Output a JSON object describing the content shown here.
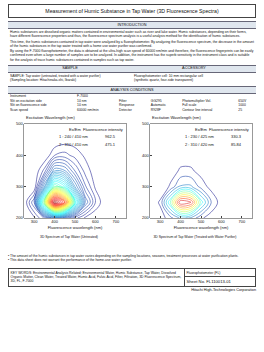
{
  "title": "Measurement of Humic Substance in Tap Water (3D Fluorescence Spectra)",
  "introduction": {
    "heading": "INTRODUCTION",
    "paragraphs": [
      "Humic substances are dissolved organic matters contained in environmental water such as river and lake water. Humic substances, depending on their forms, have different fluorescence properties and thus, the fluorescence spectrum analysis is a useful analysis method for the identification of humic substances.",
      "This time, the humic substances contained in tap water were analyzed by a fluorophotometer. By analyzing the fluorescence spectrum, the decrease in the amount of the humic substances in the tap water treated with a home use water purifier was confirmed.",
      "By using the F-7000 fluorophotometer, the data is obtained at the ultra-high scan speed of 60000 nm/min and therefore, the fluorescence fingerprints can be easily confirmed even when a large number of samples are to be analyzed. In addition, the instrument has the superb sensitivity in the instrument class and is suitable for the analysis of trace humic substances contained in samples such as tap water."
    ]
  },
  "sample": {
    "heading": "SAMPLE",
    "lines": [
      "SAMPLE: Tap water (untreated, treated with a water purifier)",
      "(Sampling location: Hitachinaka-shi, Ibaraki)"
    ]
  },
  "accessory": {
    "heading": "ACCESSORY",
    "lines": [
      "Fluorophotometer cell: 10 mm rectangular cell",
      "(synthetic quartz, four-side transparent)"
    ]
  },
  "analysis_conditions": {
    "heading": "ANALYSIS CONDITIONS",
    "instrument": {
      "label": "Instrument",
      "value": "F-7000"
    },
    "rows": [
      [
        {
          "label": "Slit on excitation side",
          "value": "10 nm"
        },
        {
          "label": "Filter",
          "value": "GG295"
        },
        {
          "label": "Photomultiplier Vol.",
          "value": "650V"
        }
      ],
      [
        {
          "label": "Slit on fluorescence side",
          "value": "10 nm"
        },
        {
          "label": "Response",
          "value": "Automatic"
        },
        {
          "label": "Full scale",
          "value": "1000"
        }
      ],
      [
        {
          "label": "Scan speed",
          "value": "60000 nm/min"
        },
        {
          "label": "Detector",
          "value": "R928F"
        },
        {
          "label": "Contour line interval",
          "value": 25
        }
      ]
    ]
  },
  "chart_data": [
    {
      "type": "contour",
      "title": "3D Spectrum of Tap Water (Untreated)",
      "x_label": "Fluorescence wavelength (nm)",
      "y_label": "Excitation Wavelength (nm)",
      "x": [
        250,
        300,
        350,
        400,
        450,
        500,
        550,
        600,
        650,
        700,
        750
      ],
      "y": [
        200,
        250,
        300,
        350,
        400,
        450,
        500
      ],
      "z": [
        [
          0,
          20,
          80,
          150,
          120,
          60,
          20,
          0,
          0,
          0,
          0
        ],
        [
          0,
          100,
          500,
          950,
          800,
          400,
          150,
          50,
          0,
          0,
          0
        ],
        [
          0,
          0,
          200,
          460,
          380,
          200,
          80,
          20,
          0,
          0,
          0
        ],
        [
          0,
          0,
          60,
          200,
          180,
          100,
          40,
          10,
          0,
          0,
          0
        ],
        [
          0,
          0,
          0,
          50,
          60,
          40,
          20,
          0,
          0,
          0,
          0
        ],
        [
          0,
          0,
          0,
          0,
          10,
          10,
          0,
          0,
          0,
          0,
          0
        ],
        [
          0,
          0,
          0,
          0,
          0,
          0,
          0,
          0,
          0,
          0,
          0
        ]
      ],
      "xlim": [
        250,
        750
      ],
      "xticks": [
        300,
        400,
        500,
        600,
        700
      ],
      "ylim": [
        200,
        500
      ],
      "yticks": [
        200,
        300,
        400,
        500
      ],
      "peaks": {
        "header": [
          "Ex/Em",
          "Fluorescence intensity"
        ],
        "rows": [
          [
            "1 :",
            "240 / 410 nm",
            962.5
          ],
          [
            "2 :",
            "310 / 410 nm",
            475.1
          ]
        ]
      }
    },
    {
      "type": "contour",
      "title": "3D Spectrum of Tap Water (Treated with Water Purifier)",
      "x_label": "Fluorescence wavelength (nm)",
      "y_label": "Excitation Wavelength (nm)",
      "x": [
        250,
        300,
        350,
        400,
        450,
        500,
        550,
        600,
        650,
        700,
        750
      ],
      "y": [
        200,
        250,
        300,
        350,
        400,
        450,
        500
      ],
      "z": [
        [
          0,
          10,
          40,
          80,
          70,
          30,
          10,
          0,
          0,
          0,
          0
        ],
        [
          0,
          30,
          150,
          300,
          280,
          140,
          50,
          10,
          0,
          0,
          0
        ],
        [
          0,
          0,
          30,
          80,
          80,
          40,
          15,
          0,
          0,
          0,
          0
        ],
        [
          0,
          0,
          10,
          30,
          30,
          15,
          5,
          0,
          0,
          0,
          0
        ],
        [
          0,
          0,
          0,
          10,
          10,
          5,
          0,
          0,
          0,
          0,
          0
        ],
        [
          0,
          0,
          0,
          0,
          0,
          0,
          0,
          0,
          0,
          0,
          0
        ],
        [
          0,
          0,
          0,
          0,
          0,
          0,
          0,
          0,
          0,
          0,
          0
        ]
      ],
      "xlim": [
        250,
        750
      ],
      "xticks": [
        300,
        400,
        500,
        600,
        700
      ],
      "ylim": [
        200,
        500
      ],
      "yticks": [
        200,
        300,
        400,
        500
      ],
      "peaks": {
        "header": [
          "Ex/Em",
          "Fluorescence intensity"
        ],
        "rows": [
          [
            "1 :",
            "230 / 425 nm",
            330.3
          ],
          [
            "2 :",
            "310 / 420 nm",
            85.84
          ]
        ]
      }
    }
  ],
  "notes": [
    "• The amount of the humic substances in tap water varies depending on the sampling locations, seasons, treatment processes at water purification plants.",
    "• This data sheet does not warrant the performance of the home-use water purifier."
  ],
  "footer": {
    "key_words": "KEY WORDS: Environmental Analysis Related; Environmental Water, Humic Substance, Tap Water, Dissolved Organic Matter, Clean Water, Treated Water, Humic Acid, Fulvic Acid, Filter, Filtration, 3D Fluorescence Spectrum, 3D, FL, F-7000",
    "category": "Fluorophotometer (FL)",
    "sheet": "Sheet No. FL110013-01",
    "company": "Hitachi High-Technologies Corporation"
  }
}
